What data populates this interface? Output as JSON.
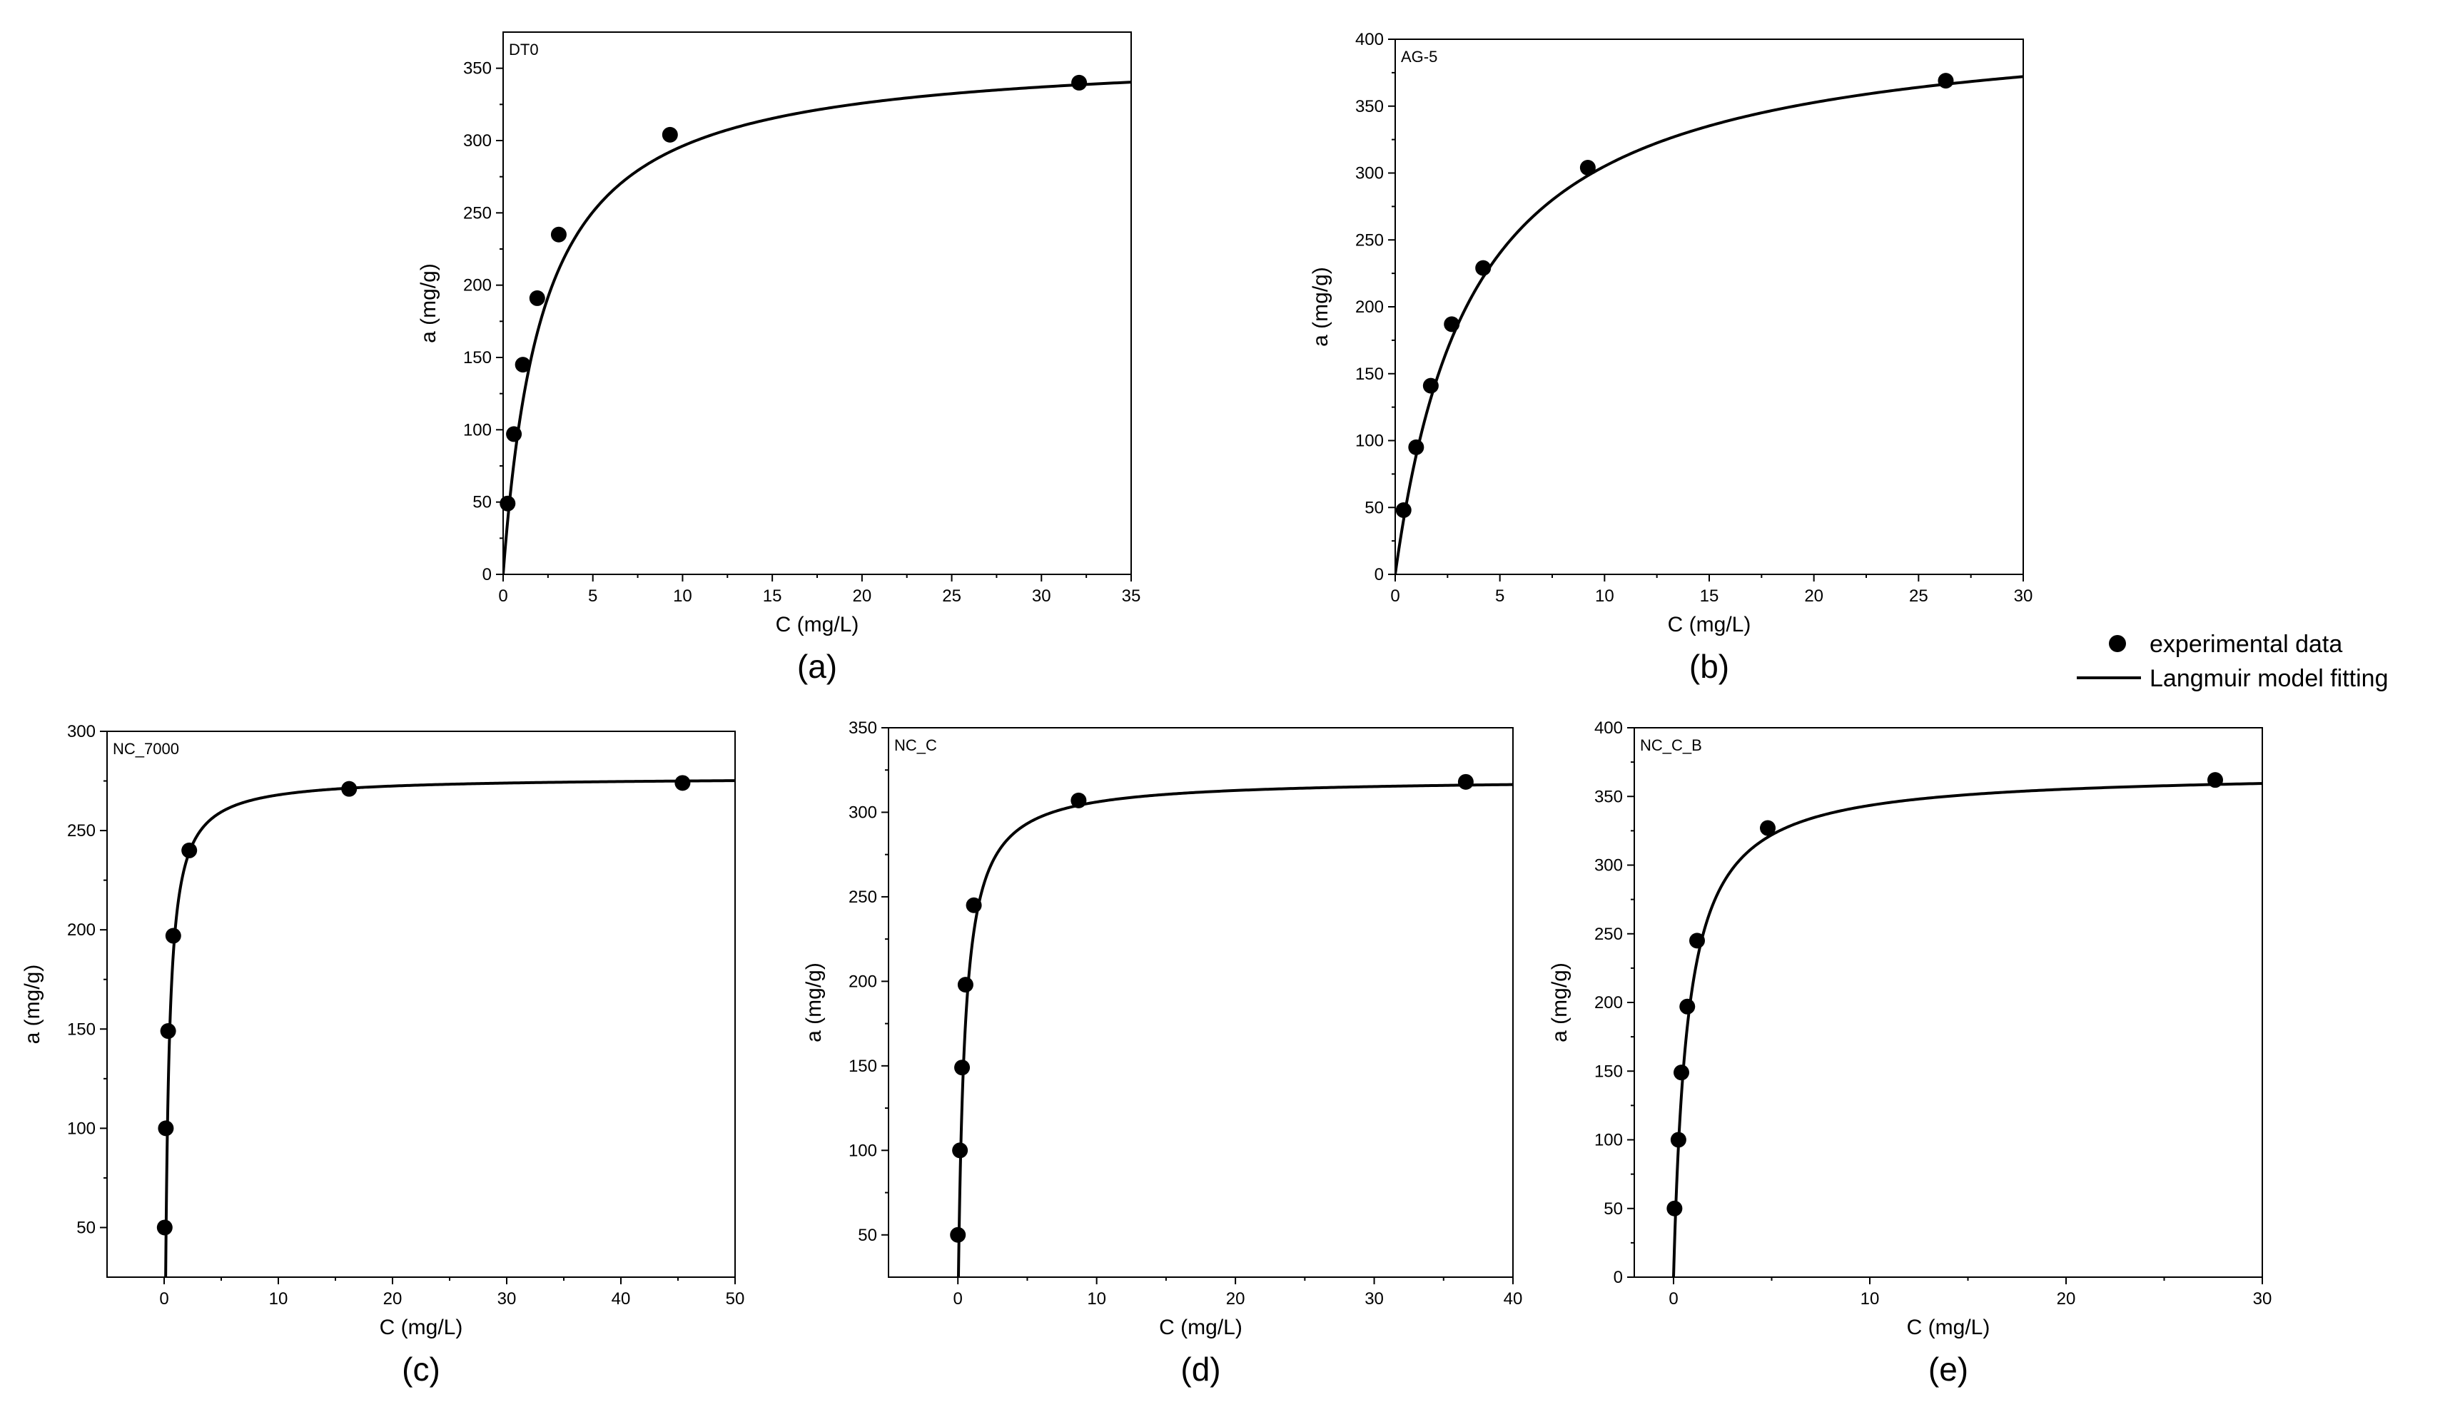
{
  "legend": {
    "points_label": "experimental data",
    "line_label": "Langmuir model fitting"
  },
  "chart_data": [
    {
      "type": "scatter",
      "panel": "(a)",
      "sample": "DT0",
      "xlabel": "C (mg/L)",
      "ylabel": "a (mg/g)",
      "xlim": [
        0,
        35
      ],
      "ylim": [
        0,
        375
      ],
      "xticks": [
        0,
        5,
        10,
        15,
        20,
        25,
        30,
        35
      ],
      "yticks": [
        0,
        50,
        100,
        150,
        200,
        250,
        300,
        350
      ],
      "points": [
        [
          0.25,
          49
        ],
        [
          0.6,
          97
        ],
        [
          1.1,
          145
        ],
        [
          1.9,
          191
        ],
        [
          3.1,
          235
        ],
        [
          9.3,
          304
        ],
        [
          32.1,
          340
        ]
      ],
      "fit": {
        "qmax": 362,
        "K": 0.45,
        "x0": 0
      }
    },
    {
      "type": "scatter",
      "panel": "(b)",
      "sample": "AG-5",
      "xlabel": "C (mg/L)",
      "ylabel": "a (mg/g)",
      "xlim": [
        0,
        30
      ],
      "ylim": [
        0,
        400
      ],
      "xticks": [
        0,
        5,
        10,
        15,
        20,
        25,
        30
      ],
      "yticks": [
        0,
        50,
        100,
        150,
        200,
        250,
        300,
        350,
        400
      ],
      "points": [
        [
          0.4,
          48
        ],
        [
          1.0,
          95
        ],
        [
          1.7,
          141
        ],
        [
          2.7,
          187
        ],
        [
          4.2,
          229
        ],
        [
          9.2,
          304
        ],
        [
          26.3,
          369
        ]
      ],
      "fit": {
        "qmax": 418,
        "K": 0.27,
        "x0": 0
      }
    },
    {
      "type": "scatter",
      "panel": "(c)",
      "sample": "NC_7000",
      "xlabel": "C (mg/L)",
      "ylabel": "a (mg/g)",
      "xlim": [
        -5,
        50
      ],
      "ylim": [
        25,
        300
      ],
      "xticks": [
        0,
        10,
        20,
        30,
        40,
        50
      ],
      "yticks": [
        50,
        100,
        150,
        200,
        250,
        300
      ],
      "points": [
        [
          0.05,
          50
        ],
        [
          0.15,
          100
        ],
        [
          0.35,
          149
        ],
        [
          0.8,
          197
        ],
        [
          2.2,
          240
        ],
        [
          16.2,
          271
        ],
        [
          45.4,
          274
        ]
      ],
      "fit": {
        "qmax": 277,
        "K": 3.0,
        "x0": 0.1
      }
    },
    {
      "type": "scatter",
      "panel": "(d)",
      "sample": "NC_C",
      "xlabel": "C (mg/L)",
      "ylabel": "a (mg/g)",
      "xlim": [
        -5,
        40
      ],
      "ylim": [
        25,
        350
      ],
      "xticks": [
        0,
        10,
        20,
        30,
        40
      ],
      "yticks": [
        50,
        100,
        150,
        200,
        250,
        300,
        350
      ],
      "points": [
        [
          0.0,
          50
        ],
        [
          0.15,
          100
        ],
        [
          0.3,
          149
        ],
        [
          0.55,
          198
        ],
        [
          1.15,
          245
        ],
        [
          8.7,
          307
        ],
        [
          36.6,
          318
        ]
      ],
      "fit": {
        "qmax": 320,
        "K": 2.2,
        "x0": 0.0
      }
    },
    {
      "type": "scatter",
      "panel": "(e)",
      "sample": "NC_C_B",
      "xlabel": "C (mg/L)",
      "ylabel": "a (mg/g)",
      "xlim": [
        -2,
        30
      ],
      "ylim": [
        0,
        400
      ],
      "xticks": [
        0,
        10,
        20,
        30
      ],
      "yticks": [
        0,
        50,
        100,
        150,
        200,
        250,
        300,
        350,
        400
      ],
      "points": [
        [
          0.05,
          50
        ],
        [
          0.25,
          100
        ],
        [
          0.4,
          149
        ],
        [
          0.7,
          197
        ],
        [
          1.2,
          245
        ],
        [
          4.8,
          327
        ],
        [
          27.6,
          362
        ]
      ],
      "fit": {
        "qmax": 368,
        "K": 1.4,
        "x0": 0.0
      }
    }
  ]
}
